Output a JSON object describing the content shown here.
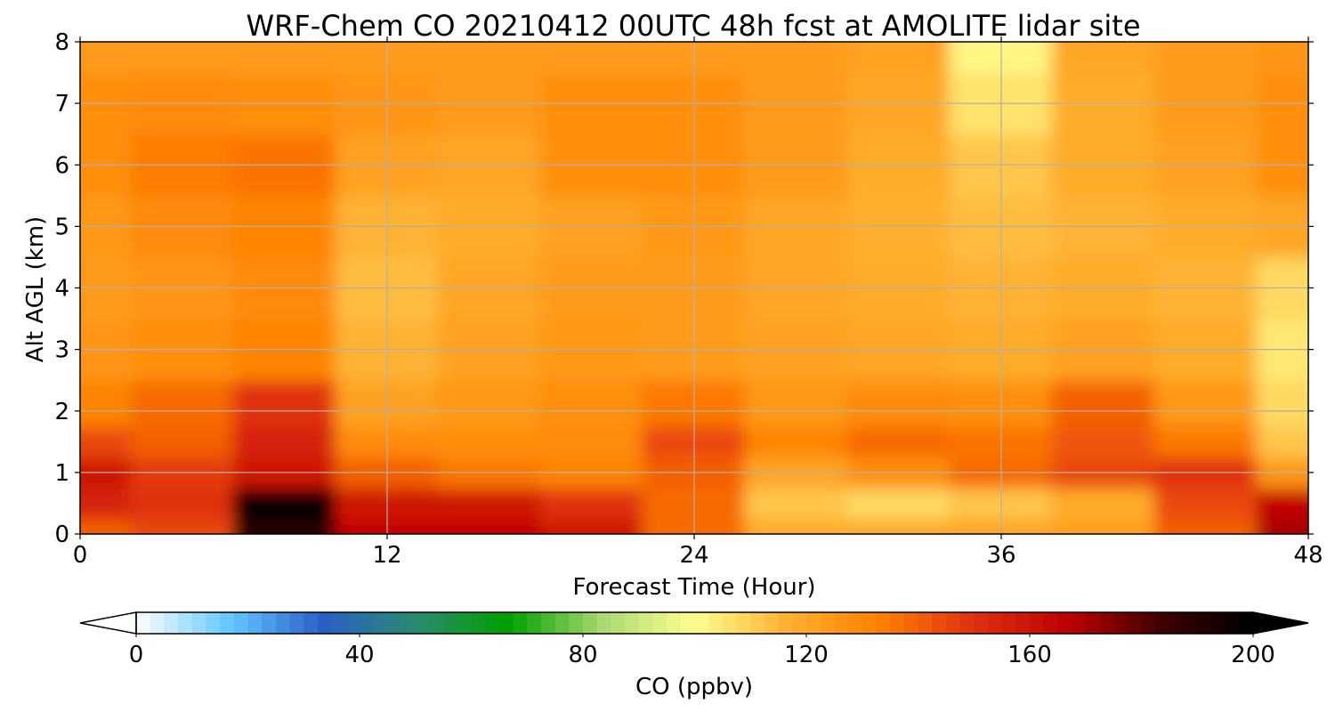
{
  "chart_data": {
    "type": "heatmap",
    "title": "WRF-Chem CO  20210412 00UTC 48h fcst at AMOLITE lidar site",
    "xlabel": "Forecast Time (Hour)",
    "ylabel": "Alt AGL (km)",
    "xlim": [
      0,
      48
    ],
    "ylim": [
      0,
      8
    ],
    "xticks": [
      0,
      12,
      24,
      36,
      48
    ],
    "yticks": [
      0,
      1,
      2,
      3,
      4,
      5,
      6,
      7,
      8
    ],
    "grid": true,
    "x": [
      0,
      4,
      8,
      12,
      16,
      20,
      24,
      28,
      32,
      36,
      40,
      44,
      48
    ],
    "y": [
      0,
      0.5,
      1,
      1.5,
      2,
      3,
      4,
      5,
      6,
      7,
      8
    ],
    "values": [
      [
        140,
        145,
        190,
        165,
        165,
        160,
        138,
        118,
        118,
        120,
        122,
        140,
        170
      ],
      [
        155,
        150,
        200,
        160,
        160,
        150,
        138,
        112,
        108,
        112,
        118,
        145,
        165
      ],
      [
        160,
        148,
        160,
        140,
        135,
        132,
        140,
        120,
        128,
        138,
        145,
        150,
        125
      ],
      [
        145,
        140,
        155,
        130,
        128,
        130,
        145,
        132,
        138,
        136,
        142,
        135,
        112
      ],
      [
        132,
        138,
        150,
        122,
        125,
        128,
        135,
        125,
        130,
        128,
        140,
        125,
        108
      ],
      [
        126,
        128,
        132,
        116,
        122,
        125,
        124,
        122,
        120,
        118,
        122,
        118,
        105
      ],
      [
        124,
        126,
        130,
        114,
        120,
        124,
        124,
        120,
        118,
        116,
        118,
        116,
        108
      ],
      [
        125,
        130,
        132,
        116,
        118,
        122,
        125,
        120,
        117,
        114,
        116,
        118,
        120
      ],
      [
        128,
        134,
        136,
        122,
        120,
        128,
        128,
        124,
        118,
        112,
        118,
        122,
        128
      ],
      [
        128,
        130,
        128,
        126,
        124,
        128,
        128,
        124,
        120,
        106,
        118,
        124,
        128
      ],
      [
        124,
        124,
        124,
        124,
        124,
        124,
        124,
        124,
        122,
        102,
        120,
        124,
        126
      ]
    ],
    "colorbar": {
      "label": "CO  (ppbv)",
      "min": 0,
      "max": 200,
      "ticks": [
        0,
        40,
        80,
        120,
        160,
        200
      ],
      "extend": "both",
      "colors": [
        "#ffffff",
        "#63c8ff",
        "#2a5fc8",
        "#2a8a70",
        "#00a000",
        "#a8d870",
        "#ffff90",
        "#ffb030",
        "#ff8000",
        "#e03010",
        "#c00000",
        "#400000",
        "#000000"
      ]
    }
  }
}
